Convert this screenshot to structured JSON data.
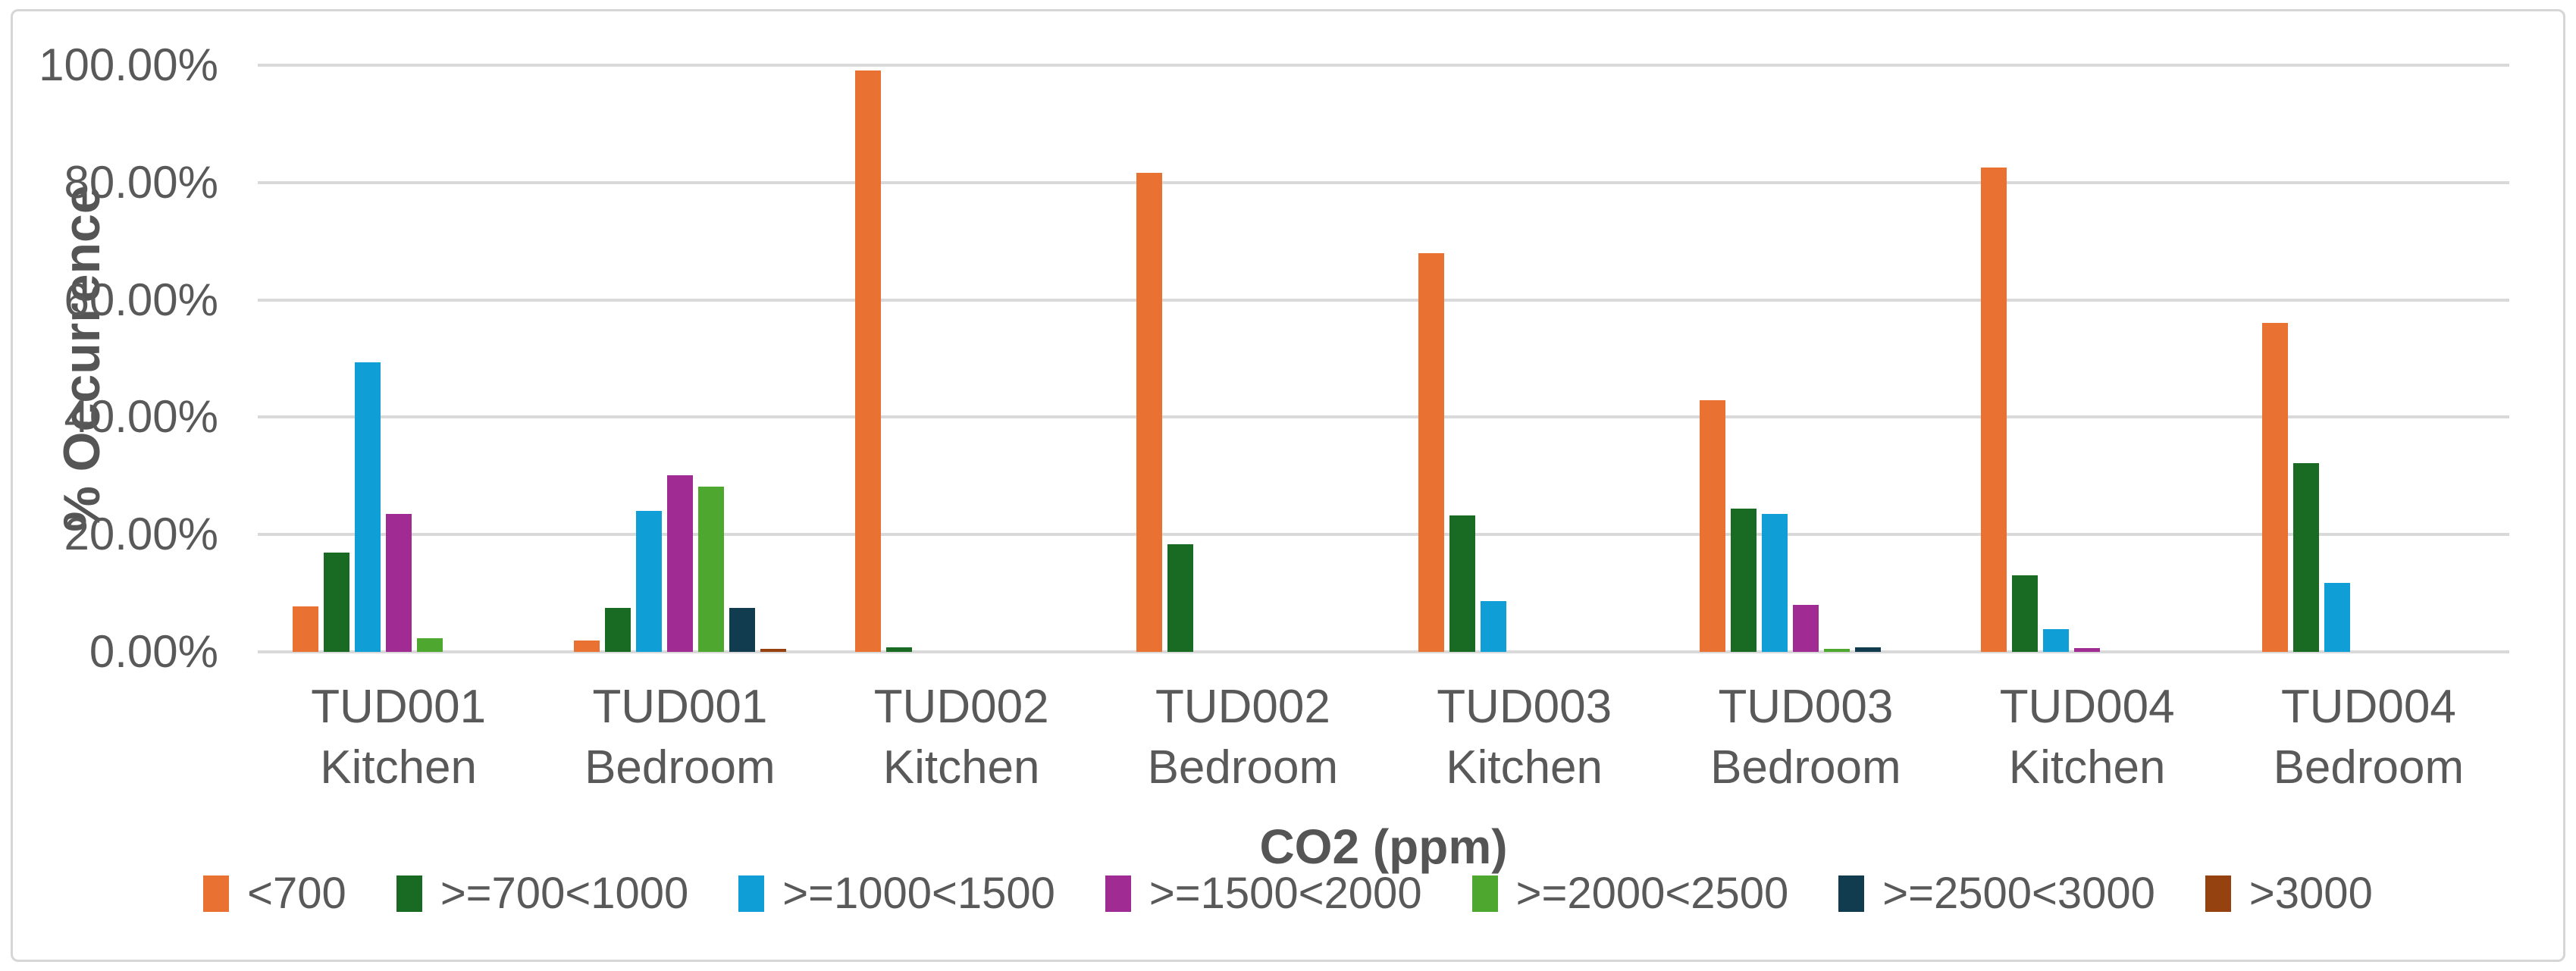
{
  "palette": {
    "gridline": "#D9D9D9",
    "axis_text": "#595959",
    "axis_title_text": "#555555",
    "background": "#FFFFFF",
    "frame_border": "#D6D6D6"
  },
  "chart_data": {
    "type": "bar",
    "title": "",
    "xlabel": "CO2 (ppm)",
    "ylabel": "% Occurrence",
    "ylim": [
      0,
      100
    ],
    "grid": true,
    "legend_position": "bottom",
    "y_ticks": [
      {
        "value": 100,
        "label": "100.00%"
      },
      {
        "value": 80,
        "label": "80.00%"
      },
      {
        "value": 60,
        "label": "60.00%"
      },
      {
        "value": 40,
        "label": "40.00%"
      },
      {
        "value": 20,
        "label": "20.00%"
      },
      {
        "value": 0,
        "label": "0.00%"
      }
    ],
    "categories": [
      {
        "line1": "TUD001",
        "line2": "Kitchen"
      },
      {
        "line1": "TUD001",
        "line2": "Bedroom"
      },
      {
        "line1": "TUD002",
        "line2": "Kitchen"
      },
      {
        "line1": "TUD002",
        "line2": "Bedroom"
      },
      {
        "line1": "TUD003",
        "line2": "Kitchen"
      },
      {
        "line1": "TUD003",
        "line2": "Bedroom"
      },
      {
        "line1": "TUD004",
        "line2": "Kitchen"
      },
      {
        "line1": "TUD004",
        "line2": "Bedroom"
      }
    ],
    "series": [
      {
        "name": "<700",
        "color": "#E97132",
        "values": [
          7.7,
          2.0,
          99.1,
          81.6,
          67.9,
          42.9,
          82.5,
          56.1
        ]
      },
      {
        "name": ">=700<1000",
        "color": "#196B24",
        "values": [
          16.9,
          7.5,
          0.8,
          18.3,
          23.3,
          24.4,
          13.0,
          32.2
        ]
      },
      {
        "name": ">=1000<1500",
        "color": "#0F9ED5",
        "values": [
          49.4,
          24.0,
          0,
          0,
          8.7,
          23.5,
          3.9,
          11.8
        ]
      },
      {
        "name": ">=1500<2000",
        "color": "#A02B93",
        "values": [
          23.5,
          30.1,
          0,
          0,
          0,
          8.0,
          0.7,
          0
        ]
      },
      {
        "name": ">=2000<2500",
        "color": "#4EA72E",
        "values": [
          2.3,
          28.2,
          0,
          0,
          0,
          0.5,
          0,
          0
        ]
      },
      {
        "name": ">=2500<3000",
        "color": "#113C50",
        "values": [
          0,
          7.5,
          0,
          0,
          0,
          0.8,
          0,
          0
        ]
      },
      {
        "name": ">3000",
        "color": "#964110",
        "values": [
          0,
          0.5,
          0,
          0,
          0,
          0,
          0,
          0
        ]
      }
    ]
  }
}
